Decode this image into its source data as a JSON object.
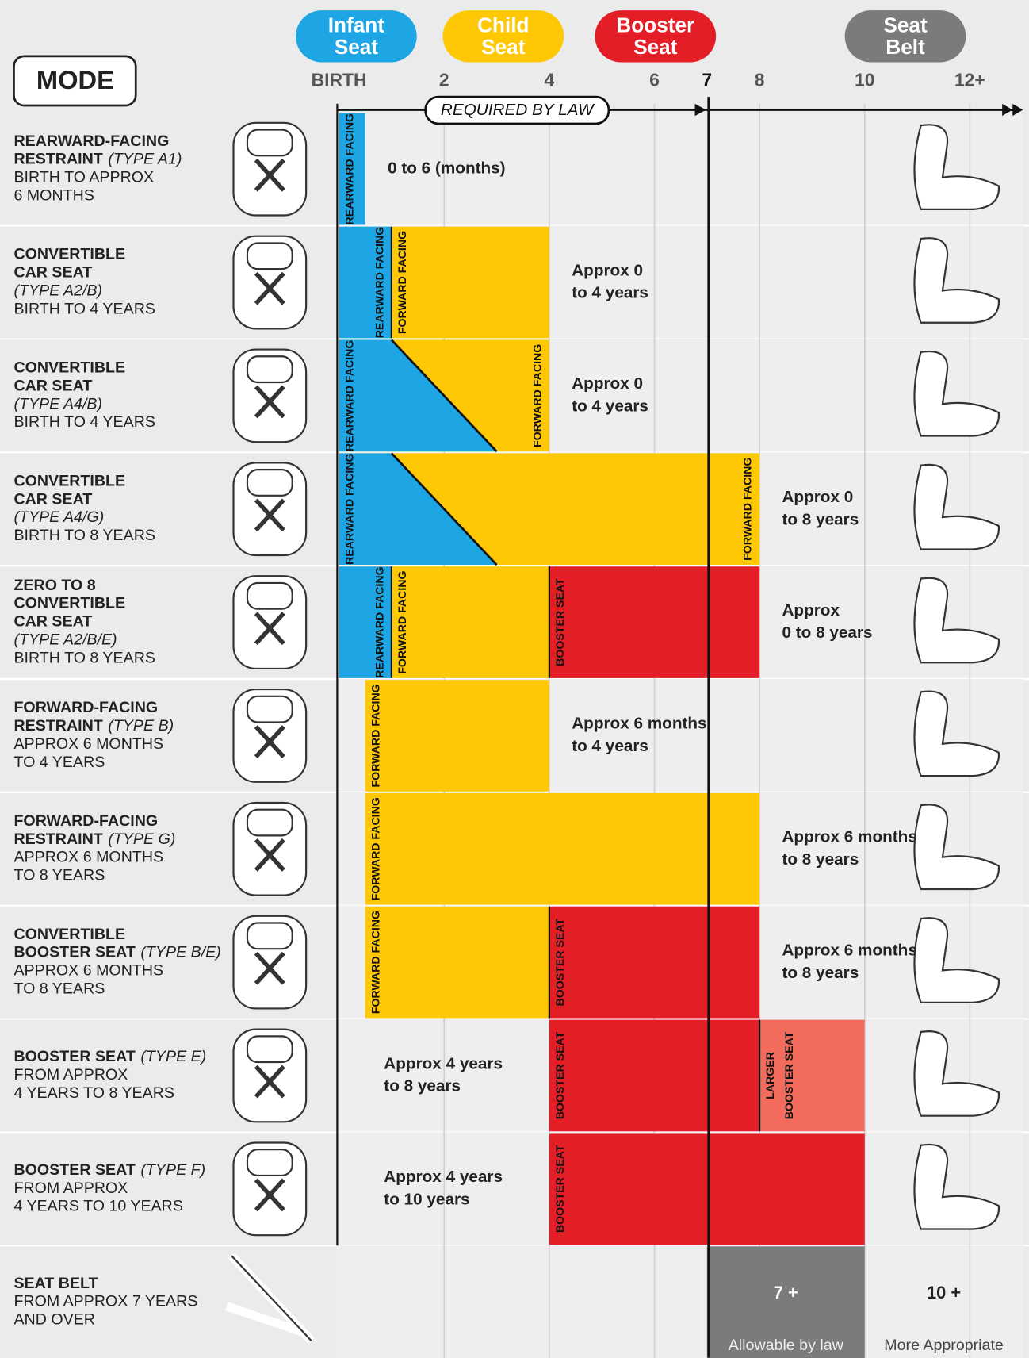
{
  "colors": {
    "infant": "#1ea5e3",
    "child": "#ffc805",
    "booster": "#e41e26",
    "larger": "#f36b5c",
    "belt": "#7b7b7b"
  },
  "header": {
    "mode": "MODE",
    "bubbles": [
      {
        "stage": "infant",
        "lines": [
          "Infant",
          "Seat"
        ]
      },
      {
        "stage": "child",
        "lines": [
          "Child",
          "Seat"
        ]
      },
      {
        "stage": "booster",
        "lines": [
          "Booster",
          "Seat"
        ]
      },
      {
        "stage": "belt",
        "lines": [
          "Seat",
          "Belt"
        ]
      }
    ]
  },
  "axis": {
    "ticks": [
      {
        "value": 0,
        "label": "BIRTH"
      },
      2,
      4,
      6,
      7,
      8,
      10,
      {
        "value": 12,
        "label": "12+"
      }
    ],
    "required_by_law": "REQUIRED BY LAW",
    "law_until": 7
  },
  "rows": [
    {
      "mode": {
        "name": [
          "REARWARD-FACING",
          "RESTRAINT"
        ],
        "type": "(TYPE A1)",
        "type_inline": true,
        "range": [
          "BIRTH TO APPROX",
          "6 MONTHS"
        ]
      },
      "segments": [
        {
          "stage": "infant",
          "from": 0,
          "to": 0.5,
          "label": [
            "REARWARD FACING"
          ]
        }
      ],
      "note": [
        "0 to 6 (months)"
      ]
    },
    {
      "mode": {
        "name": [
          "CONVERTIBLE",
          "CAR SEAT"
        ],
        "type": "(TYPE A2/B)",
        "type_inline": false,
        "range": [
          "BIRTH TO 4 YEARS"
        ]
      },
      "segments": [
        {
          "stage": "infant",
          "from": 0,
          "to": 1,
          "label": [
            "REARWARD FACING"
          ],
          "label_at": "end"
        },
        {
          "stage": "child",
          "from": 1,
          "to": 4,
          "label": [
            "FORWARD FACING"
          ]
        }
      ],
      "note": [
        "Approx 0",
        "to 4 years"
      ]
    },
    {
      "mode": {
        "name": [
          "CONVERTIBLE",
          "CAR SEAT"
        ],
        "type": "(TYPE A4/B)",
        "type_inline": false,
        "range": [
          "BIRTH TO 4 YEARS"
        ]
      },
      "segments": [
        {
          "stage": "child",
          "from": 0,
          "to": 4,
          "label": [
            "FORWARD FACING"
          ],
          "label_at": "end"
        },
        {
          "stage": "infant",
          "from": 0,
          "to": 1,
          "diagonal_to": 3,
          "label": [
            "REARWARD FACING"
          ]
        }
      ],
      "note": [
        "Approx 0",
        "to 4 years"
      ]
    },
    {
      "mode": {
        "name": [
          "CONVERTIBLE",
          "CAR SEAT"
        ],
        "type": "(TYPE A4/G)",
        "type_inline": false,
        "range": [
          "BIRTH TO 8 YEARS"
        ]
      },
      "segments": [
        {
          "stage": "child",
          "from": 0,
          "to": 8,
          "label": [
            "FORWARD FACING"
          ],
          "label_at": "end"
        },
        {
          "stage": "infant",
          "from": 0,
          "to": 1,
          "diagonal_to": 3,
          "label": [
            "REARWARD FACING"
          ]
        }
      ],
      "note": [
        "Approx 0",
        "to 8 years"
      ]
    },
    {
      "mode": {
        "name": [
          "ZERO TO 8",
          "CONVERTIBLE",
          "CAR SEAT"
        ],
        "type": "(TYPE A2/B/E)",
        "type_inline": false,
        "range": [
          "BIRTH TO 8 YEARS"
        ]
      },
      "segments": [
        {
          "stage": "infant",
          "from": 0,
          "to": 1,
          "label": [
            "REARWARD FACING"
          ],
          "label_at": "end"
        },
        {
          "stage": "child",
          "from": 1,
          "to": 4,
          "label": [
            "FORWARD FACING"
          ]
        },
        {
          "stage": "booster",
          "from": 4,
          "to": 8,
          "label": [
            "BOOSTER SEAT"
          ]
        }
      ],
      "note": [
        "Approx",
        "0 to 8 years"
      ]
    },
    {
      "mode": {
        "name": [
          "FORWARD-FACING",
          "RESTRAINT"
        ],
        "type": "(TYPE B)",
        "type_inline": true,
        "range": [
          "APPROX 6 MONTHS",
          "TO 4 YEARS"
        ]
      },
      "segments": [
        {
          "stage": "child",
          "from": 0.5,
          "to": 4,
          "label": [
            "FORWARD FACING"
          ]
        }
      ],
      "note": [
        "Approx 6 months",
        "to 4 years"
      ]
    },
    {
      "mode": {
        "name": [
          "FORWARD-FACING",
          "RESTRAINT"
        ],
        "type": "(TYPE G)",
        "type_inline": true,
        "range": [
          "APPROX 6 MONTHS",
          "TO 8 YEARS"
        ]
      },
      "segments": [
        {
          "stage": "child",
          "from": 0.5,
          "to": 8,
          "label": [
            "FORWARD FACING"
          ]
        }
      ],
      "note": [
        "Approx 6 months",
        "to 8 years"
      ]
    },
    {
      "mode": {
        "name": [
          "CONVERTIBLE",
          "BOOSTER SEAT"
        ],
        "type": "(TYPE B/E)",
        "type_inline": true,
        "range": [
          "APPROX 6 MONTHS",
          "TO 8 YEARS"
        ]
      },
      "segments": [
        {
          "stage": "child",
          "from": 0.5,
          "to": 4,
          "label": [
            "FORWARD FACING"
          ]
        },
        {
          "stage": "booster",
          "from": 4,
          "to": 8,
          "label": [
            "BOOSTER SEAT"
          ]
        }
      ],
      "note": [
        "Approx 6 months",
        "to 8 years"
      ]
    },
    {
      "mode": {
        "name": [
          "BOOSTER SEAT"
        ],
        "type": "(TYPE E)",
        "type_inline": true,
        "range": [
          "FROM APPROX",
          "4 YEARS TO 8 YEARS"
        ]
      },
      "segments": [
        {
          "stage": "booster",
          "from": 4,
          "to": 8,
          "label": [
            "BOOSTER SEAT"
          ]
        },
        {
          "stage": "larger",
          "from": 8,
          "to": 10,
          "label": [
            "LARGER",
            "BOOSTER SEAT"
          ]
        }
      ],
      "note": [
        "Approx 4 years",
        "to 8 years"
      ]
    },
    {
      "mode": {
        "name": [
          "BOOSTER SEAT"
        ],
        "type": "(TYPE F)",
        "type_inline": true,
        "range": [
          "FROM APPROX",
          "4 YEARS TO 10 YEARS"
        ]
      },
      "segments": [
        {
          "stage": "booster",
          "from": 4,
          "to": 10,
          "label": [
            "BOOSTER SEAT"
          ]
        }
      ],
      "note": [
        "Approx 4 years",
        "to 10 years"
      ]
    },
    {
      "mode": {
        "name": [
          "SEAT BELT"
        ],
        "range": [
          "FROM APPROX 7 YEARS",
          "AND OVER"
        ]
      },
      "belt": {
        "from": 7,
        "to": 10,
        "allowable": "7 +",
        "appropriate": "10 +",
        "allowable_caption": "Allowable by law",
        "appropriate_caption": "More Appropriate"
      }
    }
  ]
}
